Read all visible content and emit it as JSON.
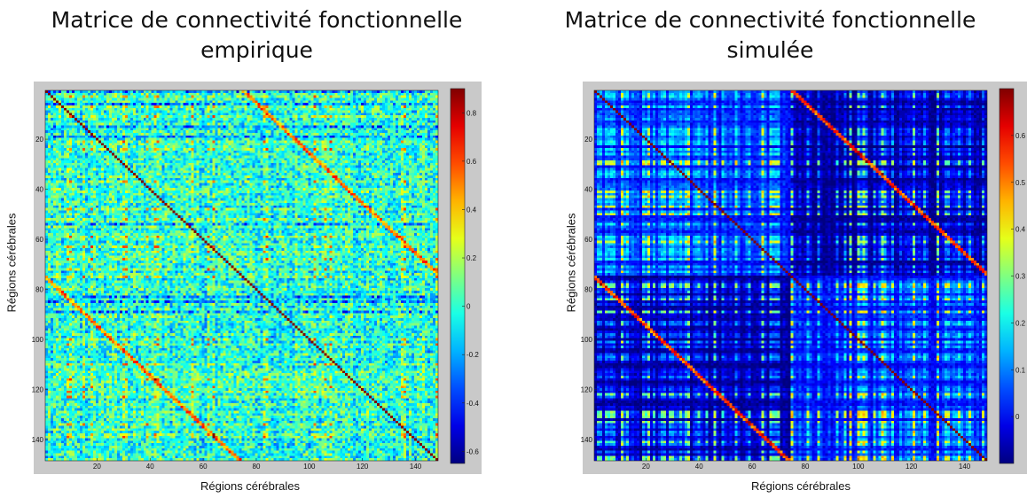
{
  "chart_data": [
    {
      "type": "heatmap",
      "title": "Matrice de connectivité fonctionnelle empirique",
      "xlabel": "Régions cérébrales",
      "ylabel": "Régions cérébrales",
      "matrix_size": 148,
      "x_ticks": [
        20,
        40,
        60,
        80,
        100,
        120,
        140
      ],
      "y_ticks": [
        20,
        40,
        60,
        80,
        100,
        120,
        140
      ],
      "colorbar_ticks": [
        0.8,
        0.6,
        0.4,
        0.2,
        0,
        -0.2,
        -0.4,
        -0.6
      ],
      "colorbar_tick_labels": [
        "0.8",
        "0.6",
        "0.4",
        "0.2",
        "0",
        "-0.2",
        "-0.4",
        "-0.6"
      ],
      "value_range": [
        -0.65,
        0.9
      ],
      "colormap": "jet",
      "diagonal_value": 0.9,
      "typical_offdiagonal_range": [
        -0.3,
        0.35
      ],
      "hemispheric_block_split": 74
    },
    {
      "type": "heatmap",
      "title": "Matrice de connectivité fonctionnelle simulée",
      "xlabel": "Régions cérébrales",
      "ylabel": "Régions cérébrales",
      "matrix_size": 148,
      "x_ticks": [
        20,
        40,
        60,
        80,
        100,
        120,
        140
      ],
      "y_ticks": [
        20,
        40,
        60,
        80,
        100,
        120,
        140
      ],
      "colorbar_ticks": [
        0.6,
        0.5,
        0.4,
        0.3,
        0.2,
        0.1,
        0
      ],
      "colorbar_tick_labels": [
        "0.6",
        "0.5",
        "0.4",
        "0.3",
        "0.2",
        "0.1",
        "0"
      ],
      "value_range": [
        -0.1,
        0.7
      ],
      "colormap": "jet",
      "diagonal_value": 0.7,
      "typical_offdiagonal_range": [
        -0.05,
        0.25
      ],
      "hemispheric_block_split": 74
    }
  ],
  "charts": [
    {
      "title_line1": "Matrice de connectivité fonctionnelle",
      "title_line2": "empirique",
      "xlabel": "Régions cérébrales",
      "ylabel": "Régions cérébrales"
    },
    {
      "title_line1": "Matrice de connectivité fonctionnelle",
      "title_line2": "simulée",
      "xlabel": "Régions cérébrales",
      "ylabel": "Régions cérébrales"
    }
  ]
}
